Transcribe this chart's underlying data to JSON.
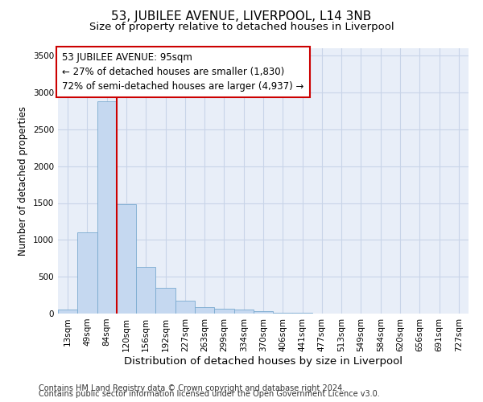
{
  "title": "53, JUBILEE AVENUE, LIVERPOOL, L14 3NB",
  "subtitle": "Size of property relative to detached houses in Liverpool",
  "xlabel": "Distribution of detached houses by size in Liverpool",
  "ylabel": "Number of detached properties",
  "categories": [
    "13sqm",
    "49sqm",
    "84sqm",
    "120sqm",
    "156sqm",
    "192sqm",
    "227sqm",
    "263sqm",
    "299sqm",
    "334sqm",
    "370sqm",
    "406sqm",
    "441sqm",
    "477sqm",
    "513sqm",
    "549sqm",
    "584sqm",
    "620sqm",
    "656sqm",
    "691sqm",
    "727sqm"
  ],
  "bar_heights": [
    50,
    1100,
    2880,
    1480,
    635,
    345,
    175,
    90,
    65,
    50,
    35,
    15,
    8,
    4,
    3,
    2,
    1,
    1,
    1,
    0,
    0
  ],
  "bar_color": "#c5d8f0",
  "bar_edge_color": "#7aaad0",
  "vline_x": 2.5,
  "vline_color": "#cc0000",
  "ylim": [
    0,
    3600
  ],
  "yticks": [
    0,
    500,
    1000,
    1500,
    2000,
    2500,
    3000,
    3500
  ],
  "annotation_text": "53 JUBILEE AVENUE: 95sqm\n← 27% of detached houses are smaller (1,830)\n72% of semi-detached houses are larger (4,937) →",
  "annotation_box_color": "#ffffff",
  "annotation_box_edge": "#cc0000",
  "footer1": "Contains HM Land Registry data © Crown copyright and database right 2024.",
  "footer2": "Contains public sector information licensed under the Open Government Licence v3.0.",
  "grid_color": "#c8d4e8",
  "plot_bg_color": "#e8eef8",
  "fig_bg_color": "#ffffff",
  "title_fontsize": 11,
  "subtitle_fontsize": 9.5,
  "xlabel_fontsize": 9.5,
  "ylabel_fontsize": 8.5,
  "tick_fontsize": 7.5,
  "annotation_fontsize": 8.5,
  "footer_fontsize": 7
}
